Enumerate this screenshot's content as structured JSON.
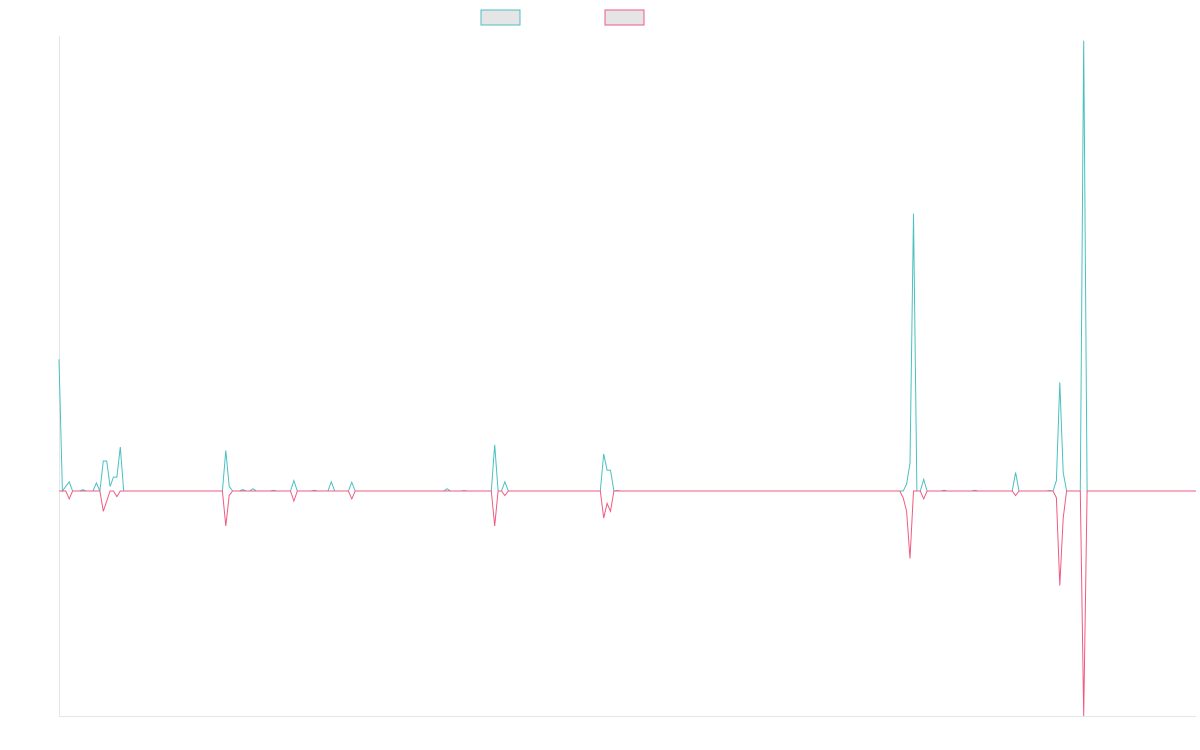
{
  "chart_data": {
    "type": "line",
    "title": "",
    "xlabel": "",
    "ylabel": "",
    "grid": false,
    "legend": "top-center",
    "ylim": [
      -1.0,
      1.0
    ],
    "series": [
      {
        "color": "#4bc0c0",
        "legend_fill": "#e5e5e5",
        "points": [
          [
            0,
            0.57
          ],
          [
            1,
            0.0
          ],
          [
            3,
            0.04
          ],
          [
            4,
            0.0
          ],
          [
            6,
            0.0
          ],
          [
            7,
            0.005
          ],
          [
            8,
            0.0
          ],
          [
            10,
            0.0
          ],
          [
            11,
            0.035
          ],
          [
            12,
            0.0
          ],
          [
            13,
            0.13
          ],
          [
            14,
            0.13
          ],
          [
            15,
            0.02
          ],
          [
            16,
            0.06
          ],
          [
            17,
            0.06
          ],
          [
            18,
            0.19
          ],
          [
            19,
            0.0
          ],
          [
            48,
            0.0
          ],
          [
            49,
            0.175
          ],
          [
            50,
            0.02
          ],
          [
            51,
            0.0
          ],
          [
            53,
            0.0
          ],
          [
            54,
            0.006
          ],
          [
            55,
            0.0
          ],
          [
            56,
            0.0
          ],
          [
            57,
            0.01
          ],
          [
            58,
            0.0
          ],
          [
            62,
            0.0
          ],
          [
            63,
            0.003
          ],
          [
            64,
            0.0
          ],
          [
            68,
            0.0
          ],
          [
            69,
            0.045
          ],
          [
            70,
            0.0
          ],
          [
            74,
            0.0
          ],
          [
            75,
            0.003
          ],
          [
            76,
            0.0
          ],
          [
            79,
            0.0
          ],
          [
            80,
            0.04
          ],
          [
            81,
            0.0
          ],
          [
            85,
            0.0
          ],
          [
            86,
            0.038
          ],
          [
            87,
            0.0
          ],
          [
            113,
            0.0
          ],
          [
            114,
            0.01
          ],
          [
            115,
            0.0
          ],
          [
            118,
            0.0
          ],
          [
            119,
            0.002
          ],
          [
            120,
            0.0
          ],
          [
            127,
            0.0
          ],
          [
            128,
            0.2
          ],
          [
            129,
            0.0
          ],
          [
            130,
            0.0
          ],
          [
            131,
            0.04
          ],
          [
            132,
            0.0
          ],
          [
            163,
            0.0
          ],
          [
            164,
            0.002
          ],
          [
            165,
            0.0
          ],
          [
            159,
            0.0
          ],
          [
            160,
            0.16
          ],
          [
            161,
            0.09
          ],
          [
            162,
            0.09
          ],
          [
            163,
            0.0
          ],
          [
            248,
            0.0
          ],
          [
            249,
            0.03
          ],
          [
            250,
            0.12
          ],
          [
            251,
            1.2
          ],
          [
            252,
            0.0
          ],
          [
            253,
            0.0
          ],
          [
            254,
            0.05
          ],
          [
            255,
            0.0
          ],
          [
            259,
            0.0
          ],
          [
            260,
            0.003
          ],
          [
            261,
            0.0
          ],
          [
            268,
            0.0
          ],
          [
            269,
            0.003
          ],
          [
            270,
            0.0
          ],
          [
            280,
            0.0
          ],
          [
            281,
            0.08
          ],
          [
            282,
            0.0
          ],
          [
            290,
            0.0
          ],
          [
            291,
            0.002
          ],
          [
            292,
            0.0
          ],
          [
            293,
            0.045
          ],
          [
            294,
            0.47
          ],
          [
            295,
            0.08
          ],
          [
            296,
            0.0
          ],
          [
            300,
            0.0
          ],
          [
            301,
            1.95
          ],
          [
            302,
            0.0
          ],
          [
            334,
            0.0
          ]
        ]
      },
      {
        "color": "#f05a82",
        "legend_fill": "#e5e5e5",
        "points": [
          [
            0,
            0.0
          ],
          [
            2,
            0.0
          ],
          [
            3,
            -0.035
          ],
          [
            4,
            0.0
          ],
          [
            12,
            0.0
          ],
          [
            13,
            -0.09
          ],
          [
            14,
            -0.045
          ],
          [
            15,
            0.0
          ],
          [
            16,
            0.0
          ],
          [
            17,
            -0.025
          ],
          [
            18,
            0.0
          ],
          [
            48,
            0.0
          ],
          [
            49,
            -0.155
          ],
          [
            50,
            -0.02
          ],
          [
            51,
            0.0
          ],
          [
            68,
            0.0
          ],
          [
            69,
            -0.045
          ],
          [
            70,
            0.0
          ],
          [
            85,
            0.0
          ],
          [
            86,
            -0.035
          ],
          [
            87,
            0.0
          ],
          [
            127,
            0.0
          ],
          [
            128,
            -0.155
          ],
          [
            129,
            0.0
          ],
          [
            130,
            0.0
          ],
          [
            131,
            -0.02
          ],
          [
            132,
            0.0
          ],
          [
            159,
            0.0
          ],
          [
            160,
            -0.12
          ],
          [
            161,
            -0.055
          ],
          [
            162,
            -0.09
          ],
          [
            163,
            0.0
          ],
          [
            247,
            0.0
          ],
          [
            248,
            -0.03
          ],
          [
            249,
            -0.09
          ],
          [
            250,
            -0.3
          ],
          [
            251,
            0.0
          ],
          [
            253,
            0.0
          ],
          [
            254,
            -0.035
          ],
          [
            255,
            0.0
          ],
          [
            280,
            0.0
          ],
          [
            281,
            -0.02
          ],
          [
            282,
            0.0
          ],
          [
            292,
            0.0
          ],
          [
            293,
            -0.03
          ],
          [
            294,
            -0.42
          ],
          [
            295,
            -0.12
          ],
          [
            296,
            0.0
          ],
          [
            300,
            0.0
          ],
          [
            301,
            -1.0
          ],
          [
            302,
            0.0
          ],
          [
            334,
            0.0
          ]
        ]
      }
    ]
  }
}
